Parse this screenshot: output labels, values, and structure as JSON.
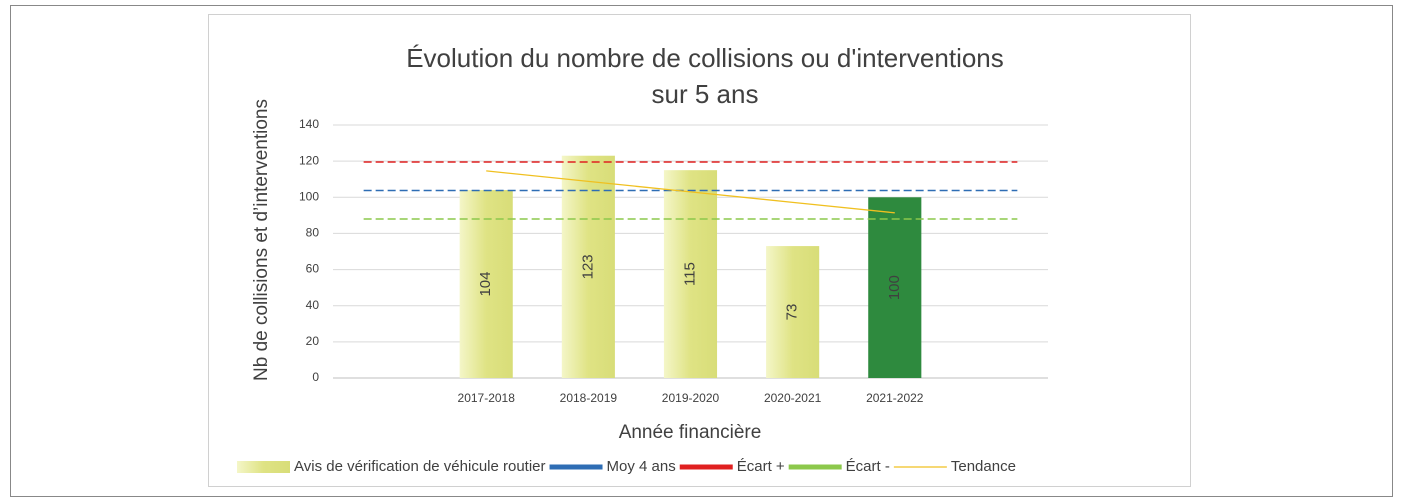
{
  "chart_data": {
    "type": "bar",
    "title": [
      "Évolution du nombre de collisions ou d'interventions",
      "sur 5 ans"
    ],
    "y_label": "Nb de collisions et d’interventions",
    "x_label": "Année financière",
    "categories": [
      null,
      "2017-2018",
      "2018-2019",
      "2019-2020",
      "2020-2021",
      "2021-2022",
      null
    ],
    "ylim": [
      0,
      140
    ],
    "yticks": [
      0,
      20,
      40,
      60,
      80,
      100,
      120,
      140
    ],
    "grid": true,
    "legend": "bottom",
    "series": [
      {
        "name": "Avis de vérification de véhicule routier",
        "type": "bar",
        "color": "#dfe384",
        "colors": [
          null,
          "#dfe384",
          "#dfe384",
          "#dfe384",
          "#dfe384",
          "#2e8a3e"
        ],
        "values": [
          null,
          104,
          123,
          115,
          73,
          100,
          null
        ]
      },
      {
        "name": "Moy 4 ans",
        "type": "line",
        "dashed": true,
        "color": "#2e6db4",
        "values": [
          103.75,
          103.75,
          103.75,
          103.75,
          103.75,
          103.75,
          103.75
        ]
      },
      {
        "name": "Écart +",
        "type": "line",
        "dashed": true,
        "color": "#e02020",
        "values": [
          119.5,
          119.5,
          119.5,
          119.5,
          119.5,
          119.5,
          119.5
        ]
      },
      {
        "name": "Écart -",
        "type": "line",
        "dashed": true,
        "color": "#8cc84b",
        "values": [
          88,
          88,
          88,
          88,
          88,
          88,
          88
        ]
      },
      {
        "name": "Tendance",
        "type": "line",
        "dashed": false,
        "color": "#f0c020",
        "values": [
          null,
          114.6,
          108.8,
          103,
          97.2,
          91.4,
          null
        ]
      }
    ]
  }
}
